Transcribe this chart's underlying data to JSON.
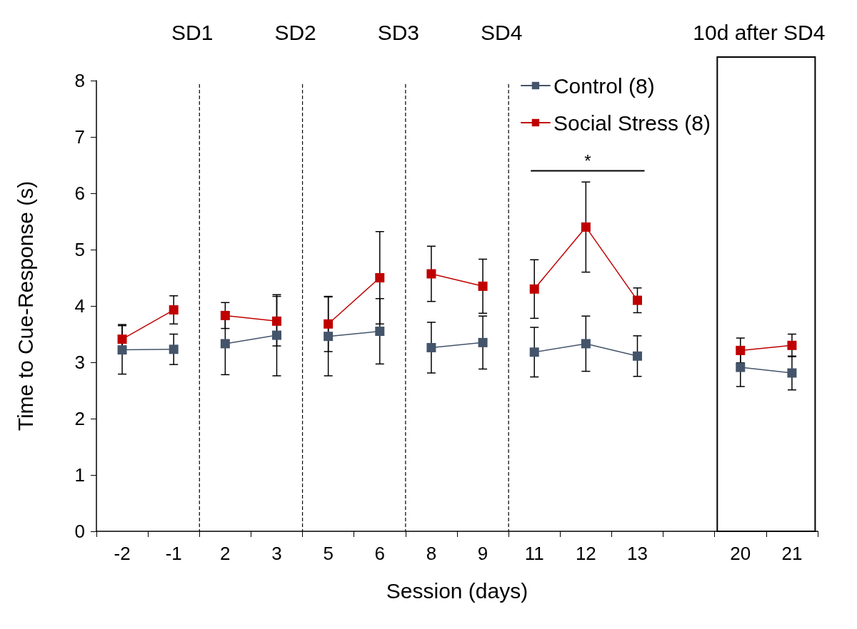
{
  "chart_data": {
    "type": "line",
    "xlabel": "Session (days)",
    "ylabel": "Time to Cue-Response (s)",
    "categories": [
      "-2",
      "-1",
      "2",
      "3",
      "5",
      "6",
      "8",
      "9",
      "11",
      "12",
      "13",
      null,
      "20",
      "21"
    ],
    "series": [
      {
        "name": "Control (8)",
        "color": "#44546a",
        "values": [
          3.22,
          3.23,
          3.33,
          3.48,
          3.46,
          3.55,
          3.26,
          3.35,
          3.18,
          3.33,
          3.11,
          null,
          2.91,
          2.81
        ],
        "errors": [
          0.43,
          0.27,
          0.55,
          0.72,
          0.7,
          0.58,
          0.45,
          0.47,
          0.44,
          0.49,
          0.36,
          null,
          0.34,
          0.3
        ]
      },
      {
        "name": "Social Stress (8)",
        "color": "#c00000",
        "values": [
          3.41,
          3.93,
          3.83,
          3.73,
          3.68,
          4.5,
          4.57,
          4.35,
          4.3,
          5.4,
          4.1,
          null,
          3.21,
          3.3
        ],
        "errors": [
          0.26,
          0.25,
          0.23,
          0.44,
          0.49,
          0.82,
          0.49,
          0.48,
          0.52,
          0.8,
          0.22,
          null,
          0.22,
          0.2
        ]
      }
    ],
    "ylim": [
      0,
      8
    ],
    "yticks": [
      0,
      1,
      2,
      3,
      4,
      5,
      6,
      7,
      8
    ],
    "grid": false,
    "legend": "top right",
    "marker": "square",
    "line_style": "solid",
    "annotations": [
      "SD1",
      "SD2",
      "SD3",
      "SD4",
      "10d after SD4",
      "*"
    ]
  }
}
